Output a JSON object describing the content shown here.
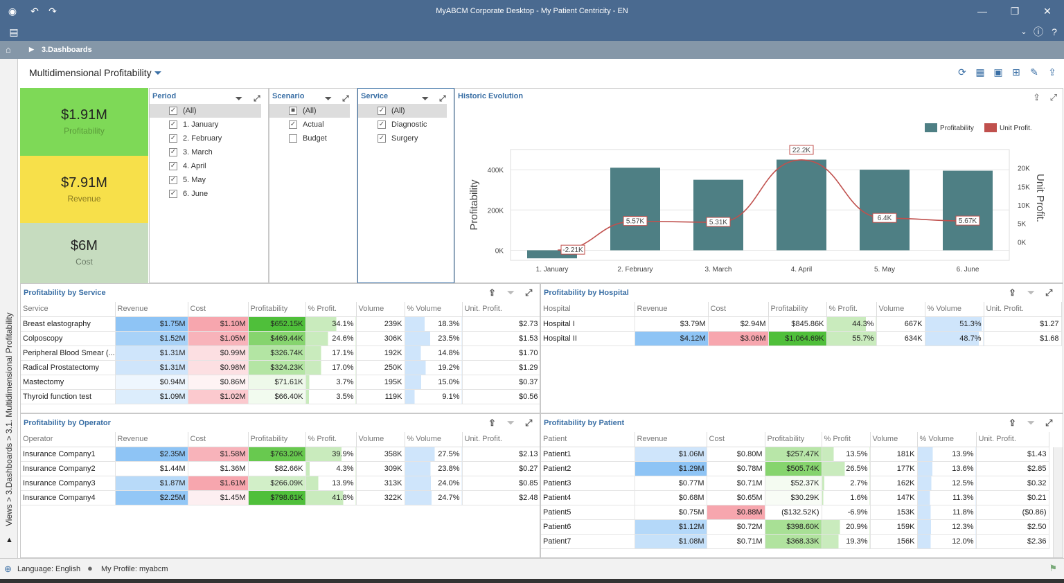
{
  "window": {
    "title": "MyABCM Corporate Desktop - My Patient Centricity - EN"
  },
  "breadcrumb": {
    "label": "3.Dashboards"
  },
  "sidebar": {
    "label": "Views > 3.Dashboards > 3.1. Multidimensional Profitability"
  },
  "dashboard": {
    "title": "Multidimensional Profitability"
  },
  "kpis": [
    {
      "value": "$1.91M",
      "label": "Profitability",
      "color": "#7ed957",
      "label_color": "#5a9a3a"
    },
    {
      "value": "$7.91M",
      "label": "Revenue",
      "color": "#f7e04a",
      "label_color": "#8a7a20"
    },
    {
      "value": "$6M",
      "label": "Cost",
      "color": "#c6dcbf",
      "label_color": "#6a7a66"
    }
  ],
  "filters": {
    "period": {
      "title": "Period",
      "items": [
        {
          "label": "(All)",
          "checked": true,
          "selected": true
        },
        {
          "label": "1. January",
          "checked": true
        },
        {
          "label": "2. February",
          "checked": true
        },
        {
          "label": "3. March",
          "checked": true
        },
        {
          "label": "4. April",
          "checked": true
        },
        {
          "label": "5. May",
          "checked": true
        },
        {
          "label": "6. June",
          "checked": true
        }
      ]
    },
    "scenario": {
      "title": "Scenario",
      "items": [
        {
          "label": "(All)",
          "checked": "partial",
          "selected": true
        },
        {
          "label": "Actual",
          "checked": true
        },
        {
          "label": "Budget",
          "checked": false
        }
      ]
    },
    "service": {
      "title": "Service",
      "items": [
        {
          "label": "(All)",
          "checked": true,
          "selected": true
        },
        {
          "label": "Diagnostic",
          "checked": true
        },
        {
          "label": "Surgery",
          "checked": true
        }
      ]
    }
  },
  "chart_data": {
    "type": "bar",
    "title": "Historic Evolution",
    "categories": [
      "1. January",
      "2. February",
      "3. March",
      "4. April",
      "5. May",
      "6. June"
    ],
    "series": [
      {
        "name": "Profitability",
        "type": "bar",
        "color": "#4e7f84",
        "values": [
          -40000,
          410000,
          350000,
          450000,
          400000,
          395000
        ]
      },
      {
        "name": "Unit Profit.",
        "type": "line",
        "color": "#c0504d",
        "values": [
          -2210,
          5570,
          5310,
          22200,
          6400,
          5670
        ],
        "labels": [
          "-2.21K",
          "5.57K",
          "5.31K",
          "22.2K",
          "6.4K",
          "5.67K"
        ]
      }
    ],
    "ylabel": "Profitability",
    "y2label": "Unit Profit.",
    "ylim": [
      -50000,
      500000
    ],
    "y2lim": [
      -5000,
      25000
    ],
    "yticks": [
      "400K",
      "200K",
      "0K"
    ],
    "y2ticks": [
      "20K",
      "15K",
      "10K",
      "5K",
      "0K"
    ],
    "legend": "top-right"
  },
  "service_table": {
    "title": "Profitability by Service",
    "columns": [
      "Service",
      "Revenue",
      "Cost",
      "Profitability",
      "% Profit.",
      "Volume",
      "% Volume",
      "Unit. Profit."
    ],
    "rows": [
      [
        "Breast elastography",
        "$1.75M",
        "$1.10M",
        "$652.15K",
        "34.1%",
        "239K",
        "18.3%",
        "$2.73"
      ],
      [
        "Colposcopy",
        "$1.52M",
        "$1.05M",
        "$469.44K",
        "24.6%",
        "306K",
        "23.5%",
        "$1.53"
      ],
      [
        "Peripheral Blood Smear (...",
        "$1.31M",
        "$0.99M",
        "$326.74K",
        "17.1%",
        "192K",
        "14.8%",
        "$1.70"
      ],
      [
        "Radical Prostatectomy",
        "$1.31M",
        "$0.98M",
        "$324.23K",
        "17.0%",
        "250K",
        "19.2%",
        "$1.29"
      ],
      [
        "Mastectomy",
        "$0.94M",
        "$0.86M",
        "$71.61K",
        "3.7%",
        "195K",
        "15.0%",
        "$0.37"
      ],
      [
        "Thyroid function test",
        "$1.09M",
        "$1.02M",
        "$66.40K",
        "3.5%",
        "119K",
        "9.1%",
        "$0.56"
      ]
    ]
  },
  "hospital_table": {
    "title": "Profitability by Hospital",
    "columns": [
      "Hospital",
      "Revenue",
      "Cost",
      "Profitability",
      "% Profit.",
      "Volume",
      "% Volume",
      "Unit. Profit."
    ],
    "rows": [
      [
        "Hospital I",
        "$3.79M",
        "$2.94M",
        "$845.86K",
        "44.3%",
        "667K",
        "51.3%",
        "$1.27"
      ],
      [
        "Hospital II",
        "$4.12M",
        "$3.06M",
        "$1,064.69K",
        "55.7%",
        "634K",
        "48.7%",
        "$1.68"
      ]
    ]
  },
  "operator_table": {
    "title": "Profitability by Operator",
    "columns": [
      "Operator",
      "Revenue",
      "Cost",
      "Profitability",
      "% Profit.",
      "Volume",
      "% Volume",
      "Unit. Profit."
    ],
    "rows": [
      [
        "Insurance Company1",
        "$2.35M",
        "$1.58M",
        "$763.20K",
        "39.9%",
        "358K",
        "27.5%",
        "$2.13"
      ],
      [
        "Insurance Company2",
        "$1.44M",
        "$1.36M",
        "$82.66K",
        "4.3%",
        "309K",
        "23.8%",
        "$0.27"
      ],
      [
        "Insurance Company3",
        "$1.87M",
        "$1.61M",
        "$266.09K",
        "13.9%",
        "313K",
        "24.0%",
        "$0.85"
      ],
      [
        "Insurance Company4",
        "$2.25M",
        "$1.45M",
        "$798.61K",
        "41.8%",
        "322K",
        "24.7%",
        "$2.48"
      ]
    ]
  },
  "patient_table": {
    "title": "Profitability by Patient",
    "columns": [
      "Patient",
      "Revenue",
      "Cost",
      "Profitability",
      "% Profit",
      "Volume",
      "% Volume",
      "Unit. Profit."
    ],
    "rows": [
      [
        "Patient1",
        "$1.06M",
        "$0.80M",
        "$257.47K",
        "13.5%",
        "181K",
        "13.9%",
        "$1.43"
      ],
      [
        "Patient2",
        "$1.29M",
        "$0.78M",
        "$505.74K",
        "26.5%",
        "177K",
        "13.6%",
        "$2.85"
      ],
      [
        "Patient3",
        "$0.77M",
        "$0.71M",
        "$52.37K",
        "2.7%",
        "162K",
        "12.5%",
        "$0.32"
      ],
      [
        "Patient4",
        "$0.68M",
        "$0.65M",
        "$30.29K",
        "1.6%",
        "147K",
        "11.3%",
        "$0.21"
      ],
      [
        "Patient5",
        "$0.75M",
        "$0.88M",
        "($132.52K)",
        "-6.9%",
        "153K",
        "11.8%",
        "($0.86)"
      ],
      [
        "Patient6",
        "$1.12M",
        "$0.72M",
        "$398.60K",
        "20.9%",
        "159K",
        "12.3%",
        "$2.50"
      ],
      [
        "Patient7",
        "$1.08M",
        "$0.71M",
        "$368.33K",
        "19.3%",
        "156K",
        "12.0%",
        "$2.36"
      ]
    ]
  },
  "status": {
    "language": "Language: English",
    "profile": "My Profile: myabcm"
  }
}
